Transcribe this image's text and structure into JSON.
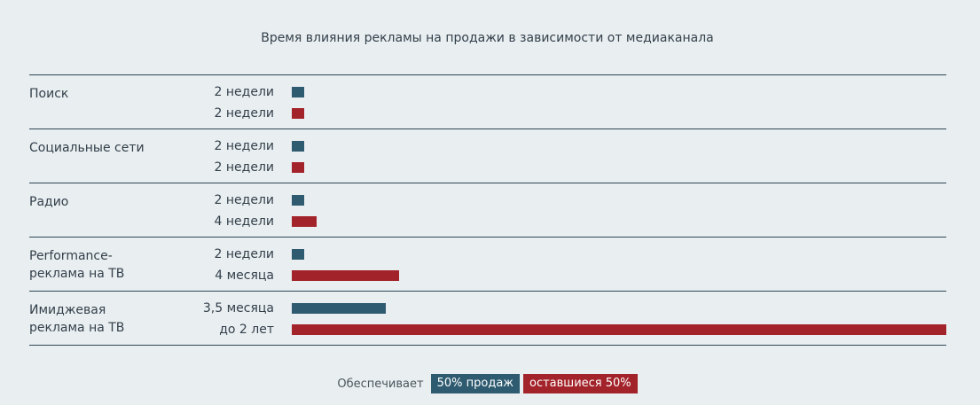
{
  "chart_data": {
    "type": "bar",
    "orientation": "horizontal",
    "title": "Время влияния рекламы на продажи в зависимости от медиаканала",
    "xlabel": "",
    "ylabel": "",
    "grid": false,
    "legend_position": "bottom-center",
    "units": "weeks",
    "categories": [
      "Поиск",
      "Социальные сети",
      "Радио",
      "Performance-реклама на ТВ",
      "Имиджевая реклама на ТВ"
    ],
    "series": [
      {
        "name": "50% продаж",
        "color": "#2e5b70",
        "values": [
          2,
          2,
          2,
          2,
          15
        ],
        "labels": [
          "2 недели",
          "2 недели",
          "2 недели",
          "2 недели",
          "3,5 месяца"
        ]
      },
      {
        "name": "оставшиеся 50%",
        "color": "#a3232a",
        "values": [
          2,
          2,
          4,
          17,
          104
        ],
        "labels": [
          "2 недели",
          "2 недели",
          "4 недели",
          "4 месяца",
          "до 2 лет"
        ]
      }
    ],
    "xlim": [
      0,
      104
    ]
  },
  "legend": {
    "lead": "Обеспечивает",
    "items": [
      {
        "label": "50% продаж",
        "color": "#2e5b70"
      },
      {
        "label": "оставшиеся 50%",
        "color": "#a3232a"
      }
    ]
  },
  "category_lines": [
    [
      "Поиск"
    ],
    [
      "Социальные сети"
    ],
    [
      "Радио"
    ],
    [
      "Performance-",
      "реклама на ТВ"
    ],
    [
      "Имиджевая",
      "реклама на ТВ"
    ]
  ]
}
